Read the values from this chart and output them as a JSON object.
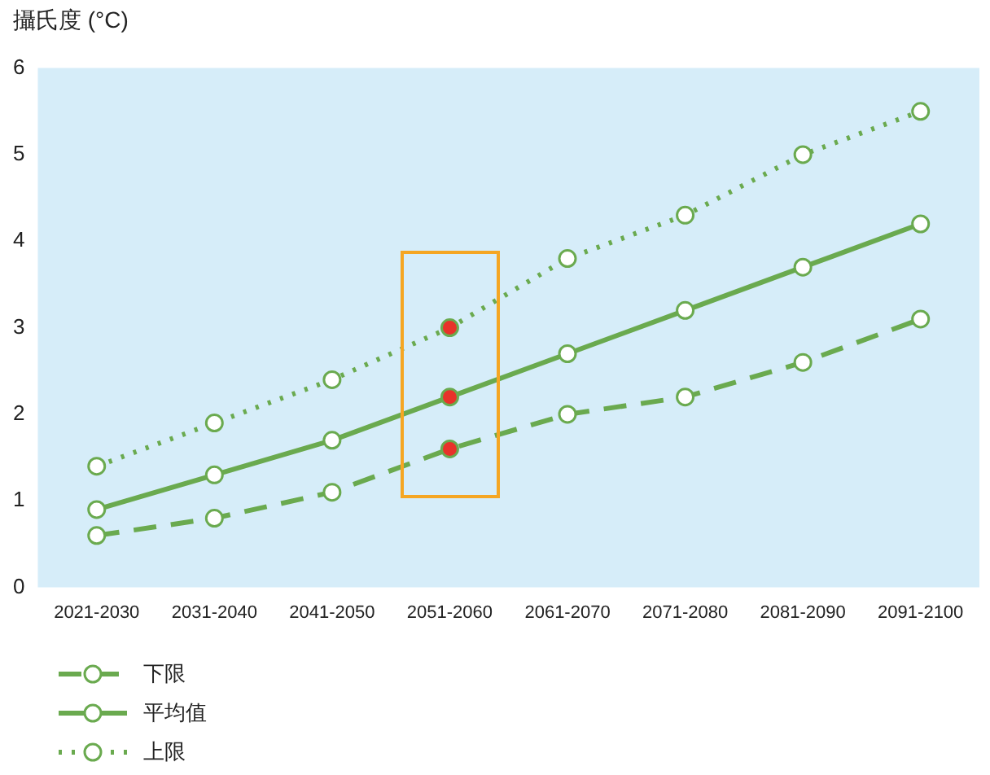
{
  "chart_data": {
    "type": "line",
    "ylabel": "攝氏度 (°C)",
    "categories": [
      "2021-2030",
      "2031-2040",
      "2041-2050",
      "2051-2060",
      "2061-2070",
      "2071-2080",
      "2081-2090",
      "2091-2100"
    ],
    "series": [
      {
        "name": "下限",
        "color": "#6aaa4f",
        "line_style": "dashed",
        "values": [
          0.6,
          0.8,
          1.1,
          1.6,
          2.0,
          2.2,
          2.6,
          3.1
        ],
        "colors": [
          "#ffffff",
          "#ffffff",
          "#ffffff",
          "#e8322a",
          "#ffffff",
          "#ffffff",
          "#ffffff",
          "#ffffff"
        ]
      },
      {
        "name": "平均值",
        "color": "#6aaa4f",
        "line_style": "solid",
        "values": [
          0.9,
          1.3,
          1.7,
          2.2,
          2.7,
          3.2,
          3.7,
          4.2
        ],
        "colors": [
          "#ffffff",
          "#ffffff",
          "#ffffff",
          "#e8322a",
          "#ffffff",
          "#ffffff",
          "#ffffff",
          "#ffffff"
        ]
      },
      {
        "name": "上限",
        "color": "#6aaa4f",
        "line_style": "dotted",
        "values": [
          1.4,
          1.9,
          2.4,
          3.0,
          3.8,
          4.3,
          5.0,
          5.5
        ],
        "colors": [
          "#ffffff",
          "#ffffff",
          "#ffffff",
          "#e8322a",
          "#ffffff",
          "#ffffff",
          "#ffffff",
          "#ffffff"
        ]
      }
    ],
    "ylim": [
      0,
      6
    ],
    "yticks": [
      0,
      1,
      2,
      3,
      4,
      5,
      6
    ],
    "grid": false,
    "legend": "bottom left",
    "marker": "circle"
  }
}
